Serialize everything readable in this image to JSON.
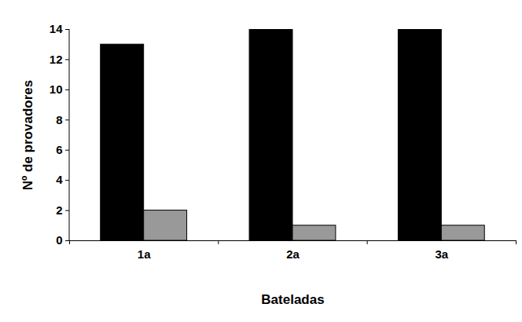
{
  "chart_data": {
    "type": "bar",
    "x_label": "Bateladas",
    "y_label": "Nº de provadores",
    "categories": [
      "1a",
      "2a",
      "3a"
    ],
    "series": [
      {
        "color": "#000000",
        "values": [
          13,
          14,
          14
        ]
      },
      {
        "color": "#999999",
        "values": [
          2,
          1,
          1
        ]
      }
    ],
    "ylim": [
      0,
      14
    ],
    "yticks": [
      0,
      2,
      4,
      6,
      8,
      10,
      12,
      14
    ],
    "grid": false
  }
}
